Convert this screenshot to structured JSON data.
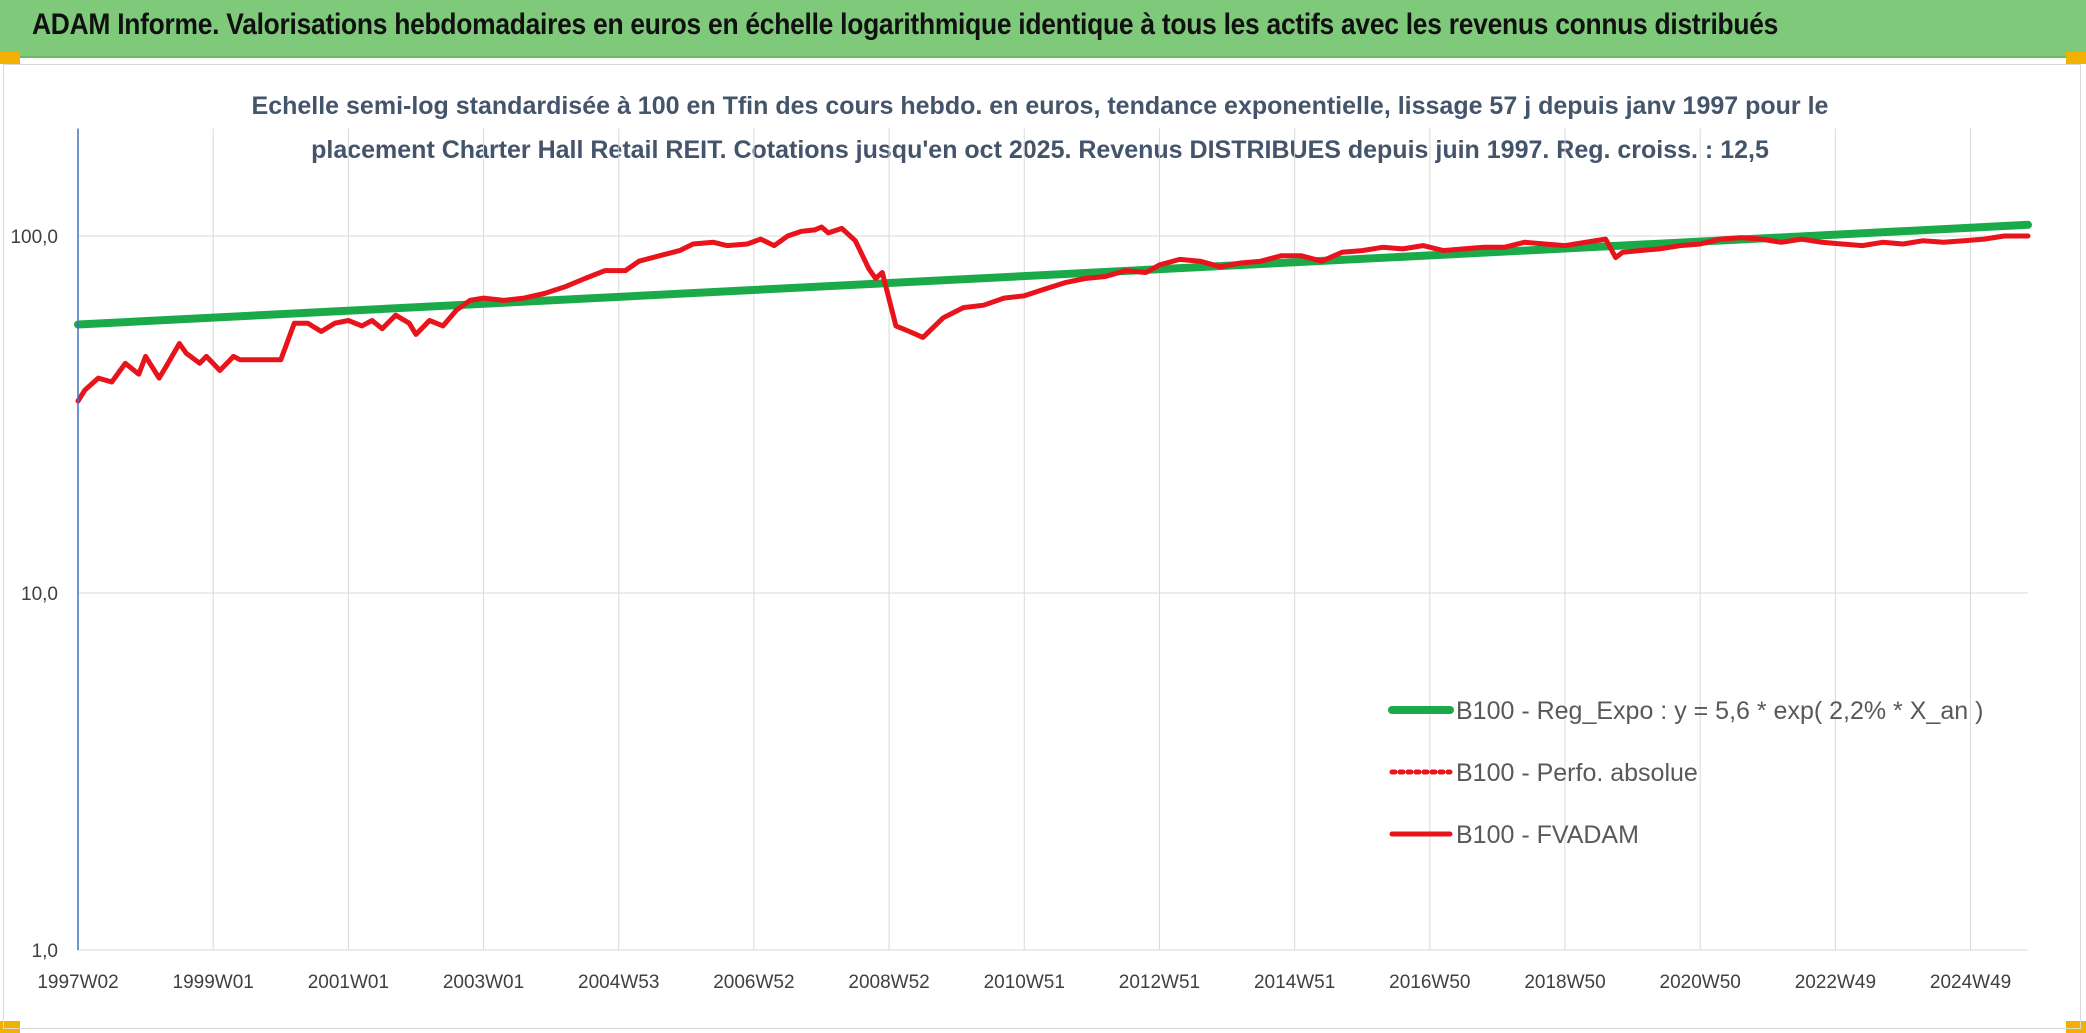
{
  "banner": {
    "title": "ADAM Informe. Valorisations hebdomadaires en euros en échelle logarithmique identique à tous les actifs avec les revenus connus distribués"
  },
  "colors": {
    "banner_bg": "#7fc97a",
    "corner_accent": "#f2b100",
    "trend_line": "#1aaa4a",
    "fvadam_line": "#e8131b",
    "perf_line": "#e8131b",
    "axis_line": "#4472c4",
    "grid": "#d9d9d9"
  },
  "chart_data": {
    "type": "line",
    "title_lines": [
      "Echelle semi-log standardisée à 100 en Tfin des cours hebdo. en euros, tendance exponentielle, lissage 57 j depuis janv 1997 pour le",
      "placement Charter Hall Retail REIT. Cotations jusqu'en oct 2025. Revenus DISTRIBUES depuis juin 1997. Reg. croiss. : 12,5"
    ],
    "y_scale": "log",
    "ylim": [
      1,
      200
    ],
    "xlim": [
      1997.0,
      2025.85
    ],
    "y_ticks": [
      {
        "value": 1,
        "label": "1,0"
      },
      {
        "value": 10,
        "label": "10,0"
      },
      {
        "value": 100,
        "label": "100,0"
      }
    ],
    "x_ticks": [
      {
        "value": 1997.0,
        "label": "1997W02"
      },
      {
        "value": 1999.0,
        "label": "1999W01"
      },
      {
        "value": 2001.0,
        "label": "2001W01"
      },
      {
        "value": 2003.0,
        "label": "2003W01"
      },
      {
        "value": 2005.0,
        "label": "2004W53"
      },
      {
        "value": 2007.0,
        "label": "2006W52"
      },
      {
        "value": 2009.0,
        "label": "2008W52"
      },
      {
        "value": 2011.0,
        "label": "2010W51"
      },
      {
        "value": 2013.0,
        "label": "2012W51"
      },
      {
        "value": 2015.0,
        "label": "2014W51"
      },
      {
        "value": 2017.0,
        "label": "2016W50"
      },
      {
        "value": 2019.0,
        "label": "2018W50"
      },
      {
        "value": 2021.0,
        "label": "2020W50"
      },
      {
        "value": 2023.0,
        "label": "2022W49"
      },
      {
        "value": 2025.0,
        "label": "2024W49"
      }
    ],
    "grid": true,
    "legend_position": "bottom-right",
    "series": [
      {
        "name": "B100 - Reg_Expo : y = 5,6 * exp( 2,2% *  X_an )",
        "style": "solid-thick",
        "color": "#1aaa4a",
        "x": [
          1997.0,
          2025.85
        ],
        "y": [
          56.5,
          107.5
        ]
      },
      {
        "name": "B100 - Perfo. absolue",
        "style": "dotted",
        "color": "#e8131b",
        "x": [],
        "y": []
      },
      {
        "name": "B100 - FVADAM",
        "style": "solid",
        "color": "#e8131b",
        "x": [
          1997.0,
          1997.1,
          1997.3,
          1997.5,
          1997.7,
          1997.9,
          1998.0,
          1998.2,
          1998.3,
          1998.5,
          1998.6,
          1998.8,
          1998.9,
          1999.1,
          1999.3,
          1999.4,
          1999.6,
          1999.8,
          2000.0,
          2000.2,
          2000.4,
          2000.6,
          2000.8,
          2001.0,
          2001.2,
          2001.35,
          2001.5,
          2001.7,
          2001.9,
          2002.0,
          2002.2,
          2002.4,
          2002.6,
          2002.8,
          2003.0,
          2003.3,
          2003.6,
          2003.9,
          2004.2,
          2004.5,
          2004.8,
          2005.1,
          2005.3,
          2005.6,
          2005.9,
          2006.1,
          2006.4,
          2006.6,
          2006.9,
          2007.1,
          2007.3,
          2007.5,
          2007.7,
          2007.9,
          2008.0,
          2008.1,
          2008.3,
          2008.5,
          2008.7,
          2008.8,
          2008.9,
          2009.1,
          2009.3,
          2009.5,
          2009.8,
          2010.1,
          2010.4,
          2010.7,
          2011.0,
          2011.3,
          2011.6,
          2011.9,
          2012.2,
          2012.5,
          2012.8,
          2013.0,
          2013.3,
          2013.6,
          2013.9,
          2014.2,
          2014.5,
          2014.8,
          2015.1,
          2015.4,
          2015.7,
          2016.0,
          2016.3,
          2016.6,
          2016.9,
          2017.2,
          2017.5,
          2017.8,
          2018.1,
          2018.4,
          2018.7,
          2019.0,
          2019.3,
          2019.6,
          2019.75,
          2019.85,
          2020.1,
          2020.4,
          2020.7,
          2021.0,
          2021.3,
          2021.6,
          2021.9,
          2022.2,
          2022.5,
          2022.8,
          2023.1,
          2023.4,
          2023.7,
          2024.0,
          2024.3,
          2024.6,
          2024.9,
          2025.2,
          2025.5,
          2025.85
        ],
        "y": [
          34.5,
          37,
          40,
          39,
          44,
          41,
          46,
          40,
          43,
          50,
          47,
          44,
          46,
          42,
          46,
          45,
          45,
          45,
          45,
          57,
          57,
          54,
          57,
          58,
          56,
          58,
          55,
          60,
          57,
          53,
          58,
          56,
          62,
          66,
          67,
          66,
          67,
          69,
          72,
          76,
          80,
          80,
          85,
          88,
          91,
          95,
          96,
          94,
          95,
          98,
          94,
          100,
          103,
          104,
          106,
          102,
          105,
          97,
          81,
          76,
          79,
          56,
          54,
          52,
          59,
          63,
          64,
          67,
          68,
          71,
          74,
          76,
          77,
          80,
          79,
          83,
          86,
          85,
          82,
          84,
          85,
          88,
          88,
          85,
          90,
          91,
          93,
          92,
          94,
          91,
          92,
          93,
          93,
          96,
          95,
          94,
          96,
          98,
          87,
          90,
          91,
          92,
          94,
          95,
          98,
          99,
          98,
          96,
          98,
          96,
          95,
          94,
          96,
          95,
          97,
          96,
          97,
          98,
          100,
          100
        ]
      }
    ]
  }
}
